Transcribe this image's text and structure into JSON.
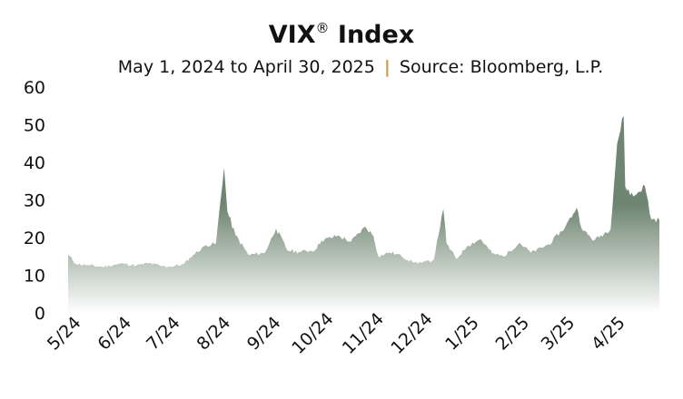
{
  "chart_data": {
    "type": "area",
    "title_main": "VIX",
    "title_mark": "®",
    "title_rest": " Index",
    "subtitle_left": "May 1, 2024 to April 30, 2025",
    "subtitle_sep": "|",
    "subtitle_right": "Source: Bloomberg, L.P.",
    "xlabel": "",
    "ylabel": "",
    "ylim": [
      0,
      60
    ],
    "yticks": [
      "0",
      "10",
      "20",
      "30",
      "40",
      "50",
      "60"
    ],
    "xticks": [
      "5/24",
      "6/24",
      "7/24",
      "8/24",
      "9/24",
      "10/24",
      "11/24",
      "12/24",
      "1/25",
      "2/25",
      "3/25",
      "4/25"
    ],
    "grid": false,
    "legend": "none",
    "fill_top_color": "#6e8571",
    "fill_bottom_color": "#ffffff",
    "x": [
      "2024-05-01",
      "2024-05-06",
      "2024-05-14",
      "2024-05-22",
      "2024-05-31",
      "2024-06-04",
      "2024-06-12",
      "2024-06-20",
      "2024-06-28",
      "2024-07-03",
      "2024-07-11",
      "2024-07-17",
      "2024-07-25",
      "2024-07-31",
      "2024-08-05",
      "2024-08-07",
      "2024-08-12",
      "2024-08-20",
      "2024-08-30",
      "2024-09-06",
      "2024-09-13",
      "2024-09-20",
      "2024-09-30",
      "2024-10-04",
      "2024-10-14",
      "2024-10-22",
      "2024-10-31",
      "2024-11-05",
      "2024-11-08",
      "2024-11-15",
      "2024-11-22",
      "2024-11-29",
      "2024-12-05",
      "2024-12-12",
      "2024-12-18",
      "2024-12-20",
      "2024-12-26",
      "2025-01-02",
      "2025-01-10",
      "2025-01-17",
      "2025-01-24",
      "2025-02-03",
      "2025-02-10",
      "2025-02-21",
      "2025-03-03",
      "2025-03-10",
      "2025-03-14",
      "2025-03-21",
      "2025-03-31",
      "2025-04-04",
      "2025-04-08",
      "2025-04-09",
      "2025-04-14",
      "2025-04-21",
      "2025-04-25",
      "2025-04-30"
    ],
    "values": [
      15.4,
      13.0,
      12.6,
      12.2,
      12.9,
      13.1,
      12.6,
      13.2,
      12.4,
      12.3,
      12.9,
      15.4,
      18.0,
      18.4,
      38.6,
      27.0,
      20.7,
      15.4,
      15.9,
      22.4,
      16.6,
      16.2,
      16.7,
      19.2,
      20.5,
      18.9,
      22.9,
      20.4,
      15.0,
      16.1,
      15.2,
      13.5,
      13.3,
      14.0,
      27.6,
      18.4,
      14.3,
      17.9,
      19.6,
      15.8,
      15.0,
      18.6,
      16.0,
      18.2,
      22.8,
      27.9,
      21.8,
      19.3,
      22.3,
      45.0,
      52.3,
      33.6,
      30.9,
      33.8,
      24.8,
      24.7
    ]
  }
}
